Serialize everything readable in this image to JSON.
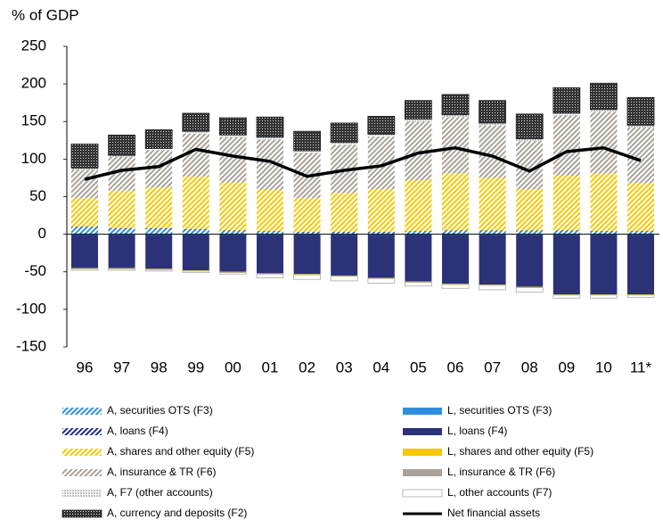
{
  "chart_data": {
    "type": "bar",
    "stacked": true,
    "y_label": "% of GDP",
    "categories": [
      "96",
      "97",
      "98",
      "99",
      "00",
      "01",
      "02",
      "03",
      "04",
      "05",
      "06",
      "07",
      "08",
      "09",
      "10",
      "11*"
    ],
    "ylim": [
      -150,
      250
    ],
    "yticks": [
      -150,
      -100,
      -50,
      0,
      50,
      100,
      150,
      200,
      250
    ],
    "series": [
      {
        "name": "A, securities OTS (F3)",
        "color": "#2e8fe0",
        "pattern": "hatch",
        "values": [
          9,
          7,
          7,
          6,
          4,
          3,
          2,
          2,
          2,
          3,
          4,
          4,
          4,
          4,
          3,
          3
        ]
      },
      {
        "name": "L, securities OTS (F3)",
        "color": "#2e8fe0",
        "pattern": "solid",
        "values": [
          -1,
          -1,
          -1,
          -1,
          -1,
          -1,
          -1,
          -1,
          -1,
          -1,
          -1,
          -1,
          -1,
          -1,
          -1,
          -1
        ]
      },
      {
        "name": "A, loans (F4)",
        "color": "#1f2d8a",
        "pattern": "hatch",
        "values": [
          1,
          1,
          1,
          1,
          1,
          1,
          1,
          1,
          1,
          1,
          1,
          1,
          1,
          1,
          1,
          1
        ]
      },
      {
        "name": "L, loans (F4)",
        "color": "#2b3278",
        "pattern": "solid",
        "values": [
          -44,
          -44,
          -45,
          -47,
          -49,
          -51,
          -52,
          -54,
          -57,
          -62,
          -65,
          -66,
          -69,
          -79,
          -79,
          -79
        ]
      },
      {
        "name": "A, shares and other equity (F5)",
        "color": "#f5c800",
        "pattern": "hatch",
        "values": [
          38,
          50,
          54,
          70,
          64,
          55,
          45,
          52,
          57,
          68,
          76,
          70,
          55,
          73,
          77,
          64
        ]
      },
      {
        "name": "L, shares and other equity (F5)",
        "color": "#f5c800",
        "pattern": "solid",
        "values": [
          -1,
          -1,
          -1,
          -1,
          -1,
          -1,
          -1,
          -1,
          -1,
          -1,
          -1,
          -1,
          -1,
          -1,
          -1,
          -1
        ]
      },
      {
        "name": "A, insurance & TR (F6)",
        "color": "#a8a29a",
        "pattern": "hatch",
        "values": [
          38,
          45,
          50,
          57,
          60,
          67,
          60,
          64,
          70,
          78,
          75,
          70,
          64,
          80,
          82,
          74
        ]
      },
      {
        "name": "L, insurance & TR (F6)",
        "color": "#a8a29a",
        "pattern": "solid",
        "values": [
          0,
          0,
          0,
          0,
          0,
          0,
          0,
          0,
          0,
          0,
          0,
          0,
          0,
          0,
          0,
          0
        ]
      },
      {
        "name": "A, F7 (other accounts)",
        "color": "#bbbbbb",
        "pattern": "dots",
        "values": [
          2,
          2,
          2,
          3,
          3,
          3,
          3,
          3,
          3,
          3,
          3,
          3,
          3,
          3,
          3,
          3
        ]
      },
      {
        "name": "L, other accounts (F7)",
        "color": "#aaaaaa",
        "pattern": "outline",
        "values": [
          -2,
          -2,
          -2,
          -2,
          -2,
          -5,
          -6,
          -6,
          -6,
          -5,
          -5,
          -6,
          -6,
          -4,
          -4,
          -3
        ]
      },
      {
        "name": "A, currency and deposits (F2)",
        "color": "#333333",
        "pattern": "checker",
        "values": [
          32,
          27,
          25,
          24,
          23,
          27,
          26,
          26,
          24,
          25,
          27,
          30,
          33,
          34,
          35,
          37
        ]
      },
      {
        "name": "Net financial assets",
        "color": "#000000",
        "type": "line",
        "values": [
          73,
          85,
          90,
          113,
          104,
          97,
          77,
          85,
          91,
          108,
          115,
          104,
          84,
          110,
          115,
          98
        ]
      }
    ]
  }
}
